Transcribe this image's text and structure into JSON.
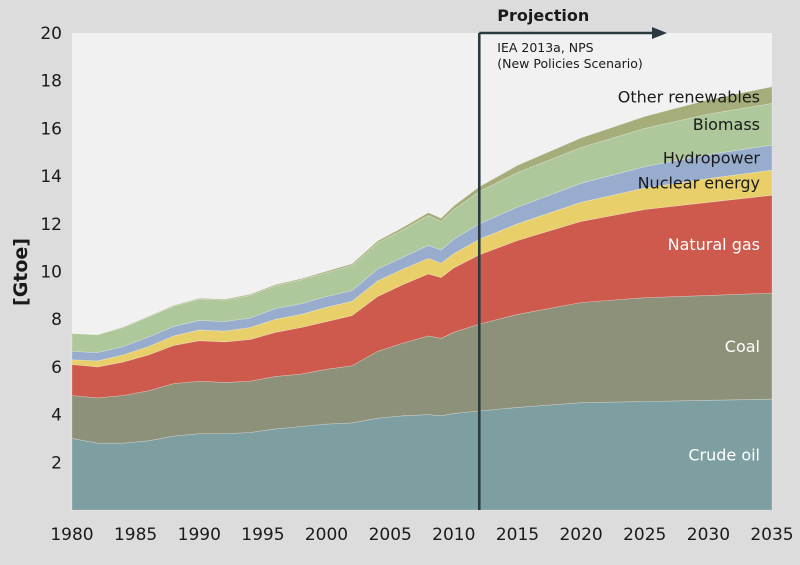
{
  "chart_data": {
    "type": "area",
    "stacked": true,
    "xlabel": "",
    "ylabel": "[Gtoe]",
    "xlim": [
      1980,
      2035
    ],
    "ylim": [
      0,
      20
    ],
    "x_ticks": [
      1980,
      1985,
      1990,
      1995,
      2000,
      2005,
      2010,
      2015,
      2020,
      2025,
      2030,
      2035
    ],
    "y_ticks": [
      2,
      4,
      6,
      8,
      10,
      12,
      14,
      16,
      18,
      20
    ],
    "grid": false,
    "projection": {
      "start_year": 2012,
      "title": "Projection",
      "source_line1": "IEA 2013a, NPS",
      "source_line2": "(New Policies Scenario)"
    },
    "x": [
      1980,
      1982,
      1984,
      1986,
      1988,
      1990,
      1992,
      1994,
      1996,
      1998,
      2000,
      2002,
      2004,
      2006,
      2008,
      2009,
      2010,
      2012,
      2015,
      2020,
      2025,
      2030,
      2035
    ],
    "series": [
      {
        "name": "Crude oil",
        "color": "#7e9fa1",
        "label_color": "#ffffff",
        "values": [
          3.0,
          2.8,
          2.8,
          2.9,
          3.1,
          3.2,
          3.2,
          3.25,
          3.4,
          3.5,
          3.6,
          3.65,
          3.85,
          3.95,
          4.0,
          3.95,
          4.05,
          4.15,
          4.3,
          4.5,
          4.55,
          4.6,
          4.65
        ]
      },
      {
        "name": "Coal",
        "color": "#8e917a",
        "label_color": "#ffffff",
        "values": [
          1.8,
          1.9,
          2.0,
          2.1,
          2.2,
          2.2,
          2.15,
          2.15,
          2.2,
          2.2,
          2.3,
          2.4,
          2.8,
          3.05,
          3.3,
          3.25,
          3.4,
          3.65,
          3.9,
          4.2,
          4.35,
          4.4,
          4.45
        ]
      },
      {
        "name": "Natural gas",
        "color": "#cd5a4c",
        "label_color": "#ffffff",
        "values": [
          1.3,
          1.3,
          1.4,
          1.5,
          1.6,
          1.7,
          1.7,
          1.75,
          1.85,
          1.95,
          2.0,
          2.1,
          2.3,
          2.45,
          2.6,
          2.55,
          2.7,
          2.9,
          3.1,
          3.4,
          3.7,
          3.9,
          4.1
        ]
      },
      {
        "name": "Nuclear energy",
        "color": "#e8cf6a",
        "label_color": "#1a1a1a",
        "values": [
          0.2,
          0.25,
          0.3,
          0.35,
          0.4,
          0.45,
          0.45,
          0.5,
          0.55,
          0.55,
          0.6,
          0.6,
          0.65,
          0.65,
          0.65,
          0.6,
          0.6,
          0.65,
          0.7,
          0.8,
          0.9,
          1.0,
          1.05
        ]
      },
      {
        "name": "Hydropower",
        "color": "#98adcd",
        "label_color": "#1a1a1a",
        "values": [
          0.35,
          0.35,
          0.35,
          0.4,
          0.4,
          0.4,
          0.4,
          0.4,
          0.45,
          0.45,
          0.45,
          0.45,
          0.5,
          0.5,
          0.55,
          0.55,
          0.6,
          0.65,
          0.7,
          0.8,
          0.9,
          1.0,
          1.05
        ]
      },
      {
        "name": "Biomass",
        "color": "#afc89b",
        "label_color": "#1a1a1a",
        "values": [
          0.75,
          0.75,
          0.8,
          0.85,
          0.85,
          0.9,
          0.9,
          0.95,
          0.95,
          1.0,
          1.0,
          1.05,
          1.1,
          1.15,
          1.25,
          1.2,
          1.25,
          1.35,
          1.45,
          1.5,
          1.6,
          1.7,
          1.75
        ]
      },
      {
        "name": "Other renewables",
        "color": "#a5ae7b",
        "label_color": "#1a1a1a",
        "values": [
          0.0,
          0.0,
          0.02,
          0.02,
          0.03,
          0.03,
          0.04,
          0.04,
          0.05,
          0.05,
          0.06,
          0.07,
          0.08,
          0.1,
          0.12,
          0.13,
          0.15,
          0.2,
          0.3,
          0.4,
          0.5,
          0.6,
          0.7
        ]
      }
    ]
  }
}
